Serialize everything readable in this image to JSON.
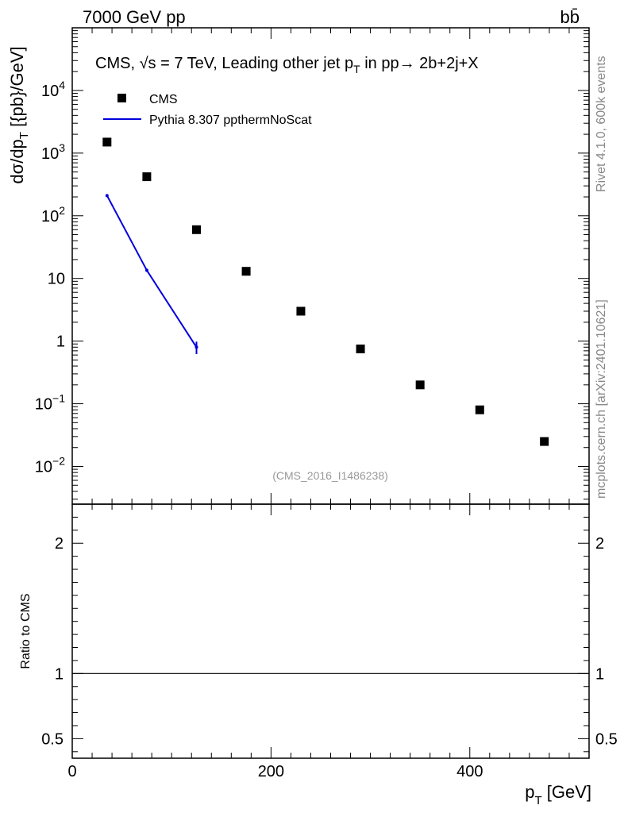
{
  "header": {
    "left": "7000 GeV pp",
    "right": "bb̄"
  },
  "chart_data": {
    "type": "scatter",
    "title": "CMS, √s = 7 TeV, Leading other jet p_T in pp → 2b+2j+X",
    "title_parts": {
      "prefix": "CMS, ",
      "sqrt": "√s",
      "mid": " = 7 TeV, Leading other jet p",
      "sub": "T",
      "suffix": " in pp→  2b+2j+X"
    },
    "analysis_label": "(CMS_2016_I1486238)",
    "side_labels": {
      "rivet": "Rivet 4.1.0,  600k events",
      "mcplots": "mcplots.cern.ch [arXiv:2401.10621]"
    },
    "legend": [
      {
        "name": "CMS",
        "marker": "square",
        "color": "#000000"
      },
      {
        "name": "Pythia 8.307 ppthermNoScat",
        "marker": "line",
        "color": "#0000dd"
      }
    ],
    "main_panel": {
      "ylabel": "dσ/dp_T [{pb}/GeV]",
      "yscale": "log",
      "ylim": [
        0.0025,
        100000
      ],
      "yticks": [
        {
          "value": 0.01,
          "base": "10",
          "exp": "−2"
        },
        {
          "value": 0.1,
          "base": "10",
          "exp": "−1"
        },
        {
          "value": 1,
          "base": "1",
          "exp": ""
        },
        {
          "value": 10,
          "base": "10",
          "exp": ""
        },
        {
          "value": 100,
          "base": "10",
          "exp": "2"
        },
        {
          "value": 1000,
          "base": "10",
          "exp": "3"
        },
        {
          "value": 10000,
          "base": "10",
          "exp": "4"
        }
      ]
    },
    "xlim": [
      0,
      520
    ],
    "xlabel": "p_T [GeV]",
    "xticks": [
      0,
      200,
      400
    ],
    "series": [
      {
        "name": "CMS",
        "kind": "points",
        "x": [
          35,
          75,
          125,
          175,
          230,
          290,
          350,
          410,
          475
        ],
        "y": [
          1500,
          420,
          60,
          13,
          3.0,
          0.75,
          0.2,
          0.08,
          0.025
        ]
      },
      {
        "name": "Pythia 8.307 ppthermNoScat",
        "kind": "line",
        "x": [
          35,
          75,
          125
        ],
        "y": [
          210,
          13.5,
          0.8
        ],
        "yerr_low": [
          0,
          0.8,
          0.18
        ],
        "yerr_high": [
          0,
          0.8,
          0.18
        ]
      }
    ],
    "ratio_panel": {
      "ylabel": "Ratio to CMS",
      "ylim": [
        0.35,
        2.3
      ],
      "yticks": [
        0.5,
        1,
        2
      ],
      "ytick_labels": [
        "0.5",
        "1",
        "2"
      ],
      "reference": 1
    }
  }
}
